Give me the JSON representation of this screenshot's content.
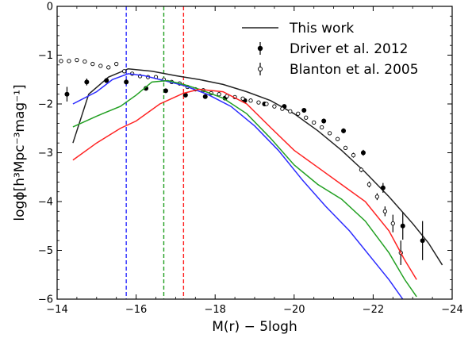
{
  "chart_data": {
    "type": "line",
    "title": "",
    "xlabel": "M(r) − 5logh",
    "ylabel": "logϕ[h³Mpc⁻³mag⁻¹]",
    "xlim": [
      -14,
      -24
    ],
    "ylim": [
      -6,
      0
    ],
    "x_ticks": [
      -14,
      -16,
      -18,
      -20,
      -22,
      -24
    ],
    "x_tick_labels": [
      "−14",
      "−16",
      "−18",
      "−20",
      "−22",
      "−24"
    ],
    "y_ticks": [
      0,
      -1,
      -2,
      -3,
      -4,
      -5,
      -6
    ],
    "y_tick_labels": [
      "0",
      "−1",
      "−2",
      "−3",
      "−4",
      "−5",
      "−6"
    ],
    "grid": false,
    "legend_position": "top-right",
    "series": [
      {
        "name": "This work",
        "kind": "line",
        "color": "#222222",
        "x": [
          -14.4,
          -14.8,
          -15.3,
          -15.8,
          -16.4,
          -17.0,
          -17.6,
          -18.2,
          -18.8,
          -19.4,
          -20.0,
          -20.6,
          -21.2,
          -21.8,
          -22.4,
          -23.0,
          -23.4,
          -23.75
        ],
        "y": [
          -2.8,
          -1.8,
          -1.45,
          -1.28,
          -1.33,
          -1.42,
          -1.5,
          -1.6,
          -1.75,
          -1.93,
          -2.2,
          -2.55,
          -2.95,
          -3.4,
          -3.9,
          -4.45,
          -4.85,
          -5.3
        ]
      },
      {
        "name": "Driver et al. 2012",
        "kind": "errorbar",
        "marker": "filled",
        "color": "#000000",
        "x": [
          -14.25,
          -14.75,
          -15.25,
          -15.75,
          -16.25,
          -16.75,
          -17.25,
          -17.75,
          -18.25,
          -18.75,
          -19.25,
          -19.75,
          -20.25,
          -20.75,
          -21.25,
          -21.75,
          -22.25,
          -22.75,
          -23.25
        ],
        "y": [
          -1.8,
          -1.55,
          -1.52,
          -1.55,
          -1.68,
          -1.73,
          -1.82,
          -1.85,
          -1.88,
          -1.93,
          -2.0,
          -2.05,
          -2.13,
          -2.35,
          -2.55,
          -3.0,
          -3.72,
          -4.5,
          -4.8
        ],
        "err": [
          0.15,
          0.07,
          0.05,
          0.05,
          0.04,
          0.04,
          0.03,
          0.03,
          0.03,
          0.03,
          0.03,
          0.03,
          0.04,
          0.05,
          0.05,
          0.06,
          0.1,
          0.28,
          0.4
        ]
      },
      {
        "name": "Blanton et al. 2005",
        "kind": "errorbar",
        "marker": "open",
        "color": "#000000",
        "x": [
          -14.1,
          -14.3,
          -14.5,
          -14.7,
          -14.9,
          -15.1,
          -15.3,
          -15.5,
          -15.7,
          -15.9,
          -16.1,
          -16.3,
          -16.5,
          -16.7,
          -16.9,
          -17.1,
          -17.3,
          -17.5,
          -17.7,
          -17.9,
          -18.1,
          -18.3,
          -18.5,
          -18.7,
          -18.9,
          -19.1,
          -19.3,
          -19.5,
          -19.7,
          -19.9,
          -20.1,
          -20.3,
          -20.5,
          -20.7,
          -20.9,
          -21.1,
          -21.3,
          -21.5,
          -21.7,
          -21.9,
          -22.1,
          -22.3,
          -22.5,
          -22.7
        ],
        "y": [
          -1.12,
          -1.12,
          -1.1,
          -1.13,
          -1.18,
          -1.22,
          -1.25,
          -1.18,
          -1.33,
          -1.38,
          -1.43,
          -1.45,
          -1.45,
          -1.5,
          -1.55,
          -1.58,
          -1.65,
          -1.7,
          -1.72,
          -1.78,
          -1.8,
          -1.84,
          -1.86,
          -1.89,
          -1.93,
          -1.97,
          -2.0,
          -2.05,
          -2.1,
          -2.15,
          -2.2,
          -2.28,
          -2.38,
          -2.48,
          -2.6,
          -2.72,
          -2.9,
          -3.05,
          -3.35,
          -3.65,
          -3.9,
          -4.2,
          -4.45,
          -5.05
        ],
        "err": [
          0.03,
          0.03,
          0.03,
          0.03,
          0.03,
          0.03,
          0.03,
          0.03,
          0.03,
          0.03,
          0.03,
          0.03,
          0.03,
          0.03,
          0.03,
          0.03,
          0.03,
          0.03,
          0.03,
          0.03,
          0.03,
          0.03,
          0.03,
          0.03,
          0.03,
          0.03,
          0.03,
          0.03,
          0.03,
          0.03,
          0.03,
          0.03,
          0.03,
          0.03,
          0.03,
          0.04,
          0.04,
          0.05,
          0.05,
          0.06,
          0.07,
          0.1,
          0.18,
          0.25
        ]
      },
      {
        "kind": "line",
        "color": "#2b2bff",
        "x": [
          -14.4,
          -15.0,
          -15.4,
          -15.8,
          -16.2,
          -16.6,
          -17.2,
          -17.8,
          -18.4,
          -19.0,
          -19.6,
          -20.2,
          -20.8,
          -21.4,
          -22.0,
          -22.4,
          -22.75
        ],
        "y": [
          -2.0,
          -1.75,
          -1.5,
          -1.38,
          -1.42,
          -1.5,
          -1.62,
          -1.8,
          -2.05,
          -2.45,
          -2.95,
          -3.55,
          -4.1,
          -4.6,
          -5.2,
          -5.6,
          -6.0
        ]
      },
      {
        "kind": "line",
        "color": "#22a022",
        "x": [
          -14.4,
          -15.0,
          -15.6,
          -16.0,
          -16.4,
          -16.8,
          -17.2,
          -17.6,
          -18.2,
          -18.8,
          -19.4,
          -20.0,
          -20.6,
          -21.2,
          -21.8,
          -22.4,
          -22.8,
          -23.1
        ],
        "y": [
          -2.47,
          -2.25,
          -2.05,
          -1.82,
          -1.55,
          -1.52,
          -1.6,
          -1.7,
          -1.88,
          -2.2,
          -2.7,
          -3.25,
          -3.65,
          -3.95,
          -4.4,
          -5.05,
          -5.6,
          -5.95
        ]
      },
      {
        "kind": "line",
        "color": "#ff2222",
        "x": [
          -14.4,
          -15.0,
          -15.6,
          -16.0,
          -16.6,
          -17.2,
          -17.6,
          -18.2,
          -18.8,
          -19.4,
          -20.0,
          -20.6,
          -21.2,
          -21.8,
          -22.4,
          -22.8,
          -23.1
        ],
        "y": [
          -3.15,
          -2.8,
          -2.5,
          -2.35,
          -2.0,
          -1.78,
          -1.7,
          -1.75,
          -2.0,
          -2.48,
          -2.95,
          -3.3,
          -3.65,
          -4.0,
          -4.6,
          -5.2,
          -5.6
        ]
      }
    ],
    "vlines": [
      {
        "x": -15.75,
        "color": "#2b2bff",
        "style": "dashed"
      },
      {
        "x": -16.7,
        "color": "#22a022",
        "style": "dashed"
      },
      {
        "x": -17.2,
        "color": "#ff2222",
        "style": "dashed"
      }
    ]
  }
}
